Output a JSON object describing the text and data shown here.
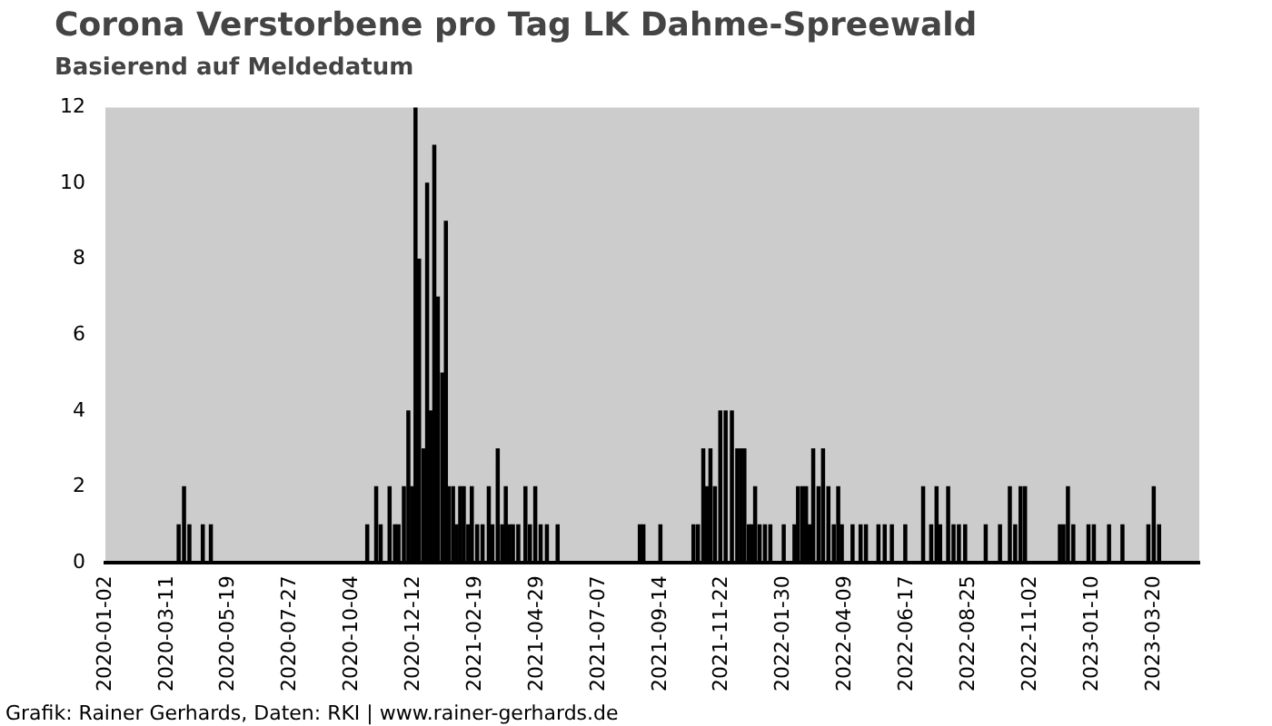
{
  "chart_data": {
    "type": "bar",
    "title": "Corona Verstorbene pro Tag LK Dahme-Spreewald",
    "subtitle": "Basierend auf Meldedatum",
    "annotations": [
      "Grafik: Rainer Gerhards, Daten: RKI | www.rainer-gerhards.de"
    ],
    "color": "#000000",
    "x": [
      "2020-03-24",
      "2020-03-30",
      "2020-04-05",
      "2020-04-20",
      "2020-04-29",
      "2020-10-21",
      "2020-10-31",
      "2020-11-05",
      "2020-11-15",
      "2020-11-21",
      "2020-11-25",
      "2020-12-01",
      "2020-12-06",
      "2020-12-10",
      "2020-12-14",
      "2020-12-18",
      "2020-12-23",
      "2020-12-27",
      "2020-12-31",
      "2021-01-04",
      "2021-01-08",
      "2021-01-13",
      "2021-01-17",
      "2021-01-20",
      "2021-01-25",
      "2021-01-29",
      "2021-02-02",
      "2021-02-06",
      "2021-02-11",
      "2021-02-15",
      "2021-02-21",
      "2021-02-27",
      "2021-03-06",
      "2021-03-10",
      "2021-03-16",
      "2021-03-21",
      "2021-03-25",
      "2021-03-29",
      "2021-04-02",
      "2021-04-08",
      "2021-04-16",
      "2021-04-21",
      "2021-04-27",
      "2021-05-03",
      "2021-05-10",
      "2021-05-22",
      "2021-08-22",
      "2021-08-26",
      "2021-09-14",
      "2021-10-21",
      "2021-10-26",
      "2021-11-01",
      "2021-11-05",
      "2021-11-09",
      "2021-11-14",
      "2021-11-20",
      "2021-11-26",
      "2021-12-03",
      "2021-12-09",
      "2021-12-13",
      "2021-12-17",
      "2021-12-22",
      "2021-12-25",
      "2021-12-29",
      "2022-01-03",
      "2022-01-09",
      "2022-01-15",
      "2022-01-30",
      "2022-02-11",
      "2022-02-15",
      "2022-02-20",
      "2022-02-24",
      "2022-02-28",
      "2022-03-04",
      "2022-03-10",
      "2022-03-15",
      "2022-03-21",
      "2022-03-27",
      "2022-04-01",
      "2022-04-05",
      "2022-04-17",
      "2022-04-26",
      "2022-05-02",
      "2022-05-16",
      "2022-05-23",
      "2022-05-31",
      "2022-06-15",
      "2022-07-05",
      "2022-07-14",
      "2022-07-20",
      "2022-07-24",
      "2022-08-02",
      "2022-08-08",
      "2022-08-14",
      "2022-08-21",
      "2022-09-13",
      "2022-09-29",
      "2022-10-10",
      "2022-10-16",
      "2022-10-22",
      "2022-10-27",
      "2022-12-05",
      "2022-12-09",
      "2022-12-14",
      "2022-12-20",
      "2023-01-06",
      "2023-01-12",
      "2023-01-29",
      "2023-02-13",
      "2023-03-14",
      "2023-03-20",
      "2023-03-26"
    ],
    "values": [
      1,
      2,
      1,
      1,
      1,
      1,
      2,
      1,
      2,
      1,
      1,
      2,
      4,
      2,
      12,
      8,
      3,
      10,
      4,
      11,
      7,
      5,
      9,
      2,
      2,
      1,
      2,
      2,
      1,
      2,
      1,
      1,
      2,
      1,
      3,
      1,
      2,
      1,
      1,
      1,
      2,
      1,
      2,
      1,
      1,
      1,
      1,
      1,
      1,
      1,
      1,
      3,
      2,
      3,
      2,
      4,
      4,
      4,
      3,
      3,
      3,
      1,
      1,
      2,
      1,
      1,
      1,
      1,
      1,
      2,
      2,
      2,
      1,
      3,
      2,
      3,
      2,
      1,
      2,
      1,
      1,
      1,
      1,
      1,
      1,
      1,
      1,
      2,
      1,
      2,
      1,
      2,
      1,
      1,
      1,
      1,
      1,
      2,
      1,
      2,
      2,
      1,
      1,
      2,
      1,
      1,
      1,
      1,
      1,
      1,
      2,
      1
    ],
    "xlim": [
      "2020-01-02",
      "2023-05-10"
    ],
    "xticks": [
      "2020-01-02",
      "2020-03-11",
      "2020-05-19",
      "2020-07-27",
      "2020-10-04",
      "2020-12-12",
      "2021-02-19",
      "2021-04-29",
      "2021-07-07",
      "2021-09-14",
      "2021-11-22",
      "2022-01-30",
      "2022-04-09",
      "2022-06-17",
      "2022-08-25",
      "2022-11-02",
      "2023-01-10",
      "2023-03-20"
    ],
    "ylim": [
      0,
      12
    ],
    "yticks": [
      0,
      2,
      4,
      6,
      8,
      10,
      12
    ],
    "grid": false
  }
}
